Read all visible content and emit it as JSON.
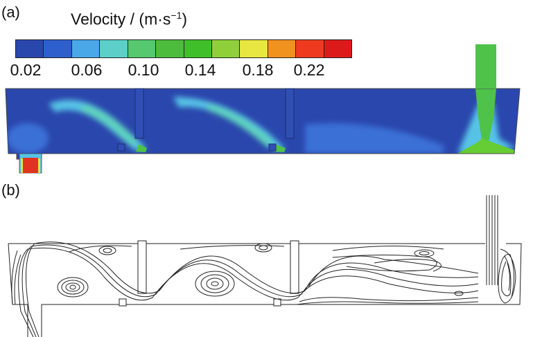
{
  "figure": {
    "panel_a_label": "(a)",
    "panel_b_label": "(b)",
    "colorbar": {
      "title": "Velocity / (m·s",
      "title_exp": "−1",
      "title_close": ")",
      "ticks": [
        "0.02",
        "0.06",
        "0.10",
        "0.14",
        "0.18",
        "0.22"
      ],
      "colors": [
        "#2a47ad",
        "#2f5fcc",
        "#4aa8e8",
        "#5cd0c8",
        "#55c870",
        "#4cbc3c",
        "#3fbf2a",
        "#8fd03a",
        "#e8e640",
        "#f2921e",
        "#ee3b20",
        "#dc1a1a"
      ]
    },
    "contour_colors": {
      "low": "#2a47ad",
      "mid_low": "#3b6fd6",
      "cyan": "#56c3e6",
      "aqua": "#5fd3bf",
      "green": "#4fc24a",
      "bright_green": "#66cc33",
      "high": "#e23320",
      "yellow": "#e6e23a"
    }
  }
}
